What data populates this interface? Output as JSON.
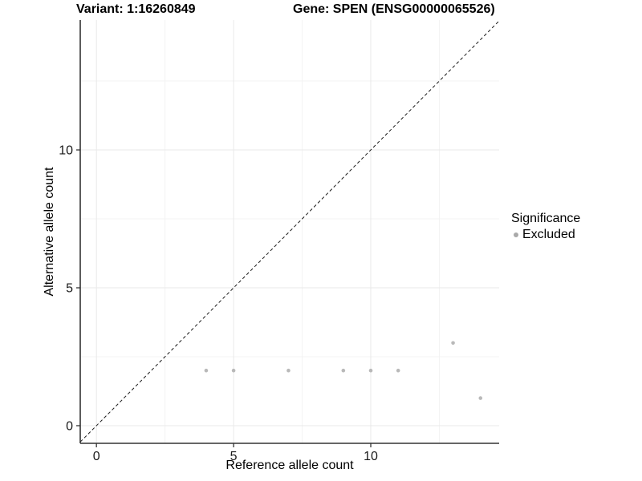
{
  "figure": {
    "background_color": "#ffffff"
  },
  "chart_data": {
    "type": "scatter",
    "title_left": "Variant: 1:16260849",
    "title_right": "Gene: SPEN (ENSG00000065526)",
    "xlabel": "Reference allele count",
    "ylabel": "Alternative allele count",
    "xlim": [
      -0.59,
      14.68
    ],
    "ylim": [
      -0.64,
      14.71
    ],
    "x_ticks": [
      0,
      5,
      10
    ],
    "y_ticks": [
      0,
      5,
      10
    ],
    "x_minor_gridlines": [
      2.5,
      7.5,
      12.5
    ],
    "y_minor_gridlines": [
      2.5,
      7.5,
      12.5
    ],
    "grid": true,
    "identity_line": {
      "description": "dashed y=x reference line",
      "color": "#1a1a1a",
      "dash": [
        4,
        3
      ]
    },
    "series": [
      {
        "name": "Excluded",
        "color": "#b9b9b9",
        "points": [
          [
            4,
            2
          ],
          [
            5,
            2
          ],
          [
            7,
            2
          ],
          [
            9,
            2
          ],
          [
            10,
            2
          ],
          [
            11,
            2
          ],
          [
            13,
            3
          ],
          [
            14,
            1
          ]
        ]
      }
    ],
    "legend": {
      "title": "Significance",
      "position": "right",
      "items": [
        {
          "label": "Excluded",
          "color": "#a9a9a9"
        }
      ]
    },
    "colors": {
      "axis_line": "#333333",
      "tick_label": "#1a1a1a",
      "major_gridline": "#e9e9e9",
      "minor_gridline": "#f3f3f3"
    }
  }
}
